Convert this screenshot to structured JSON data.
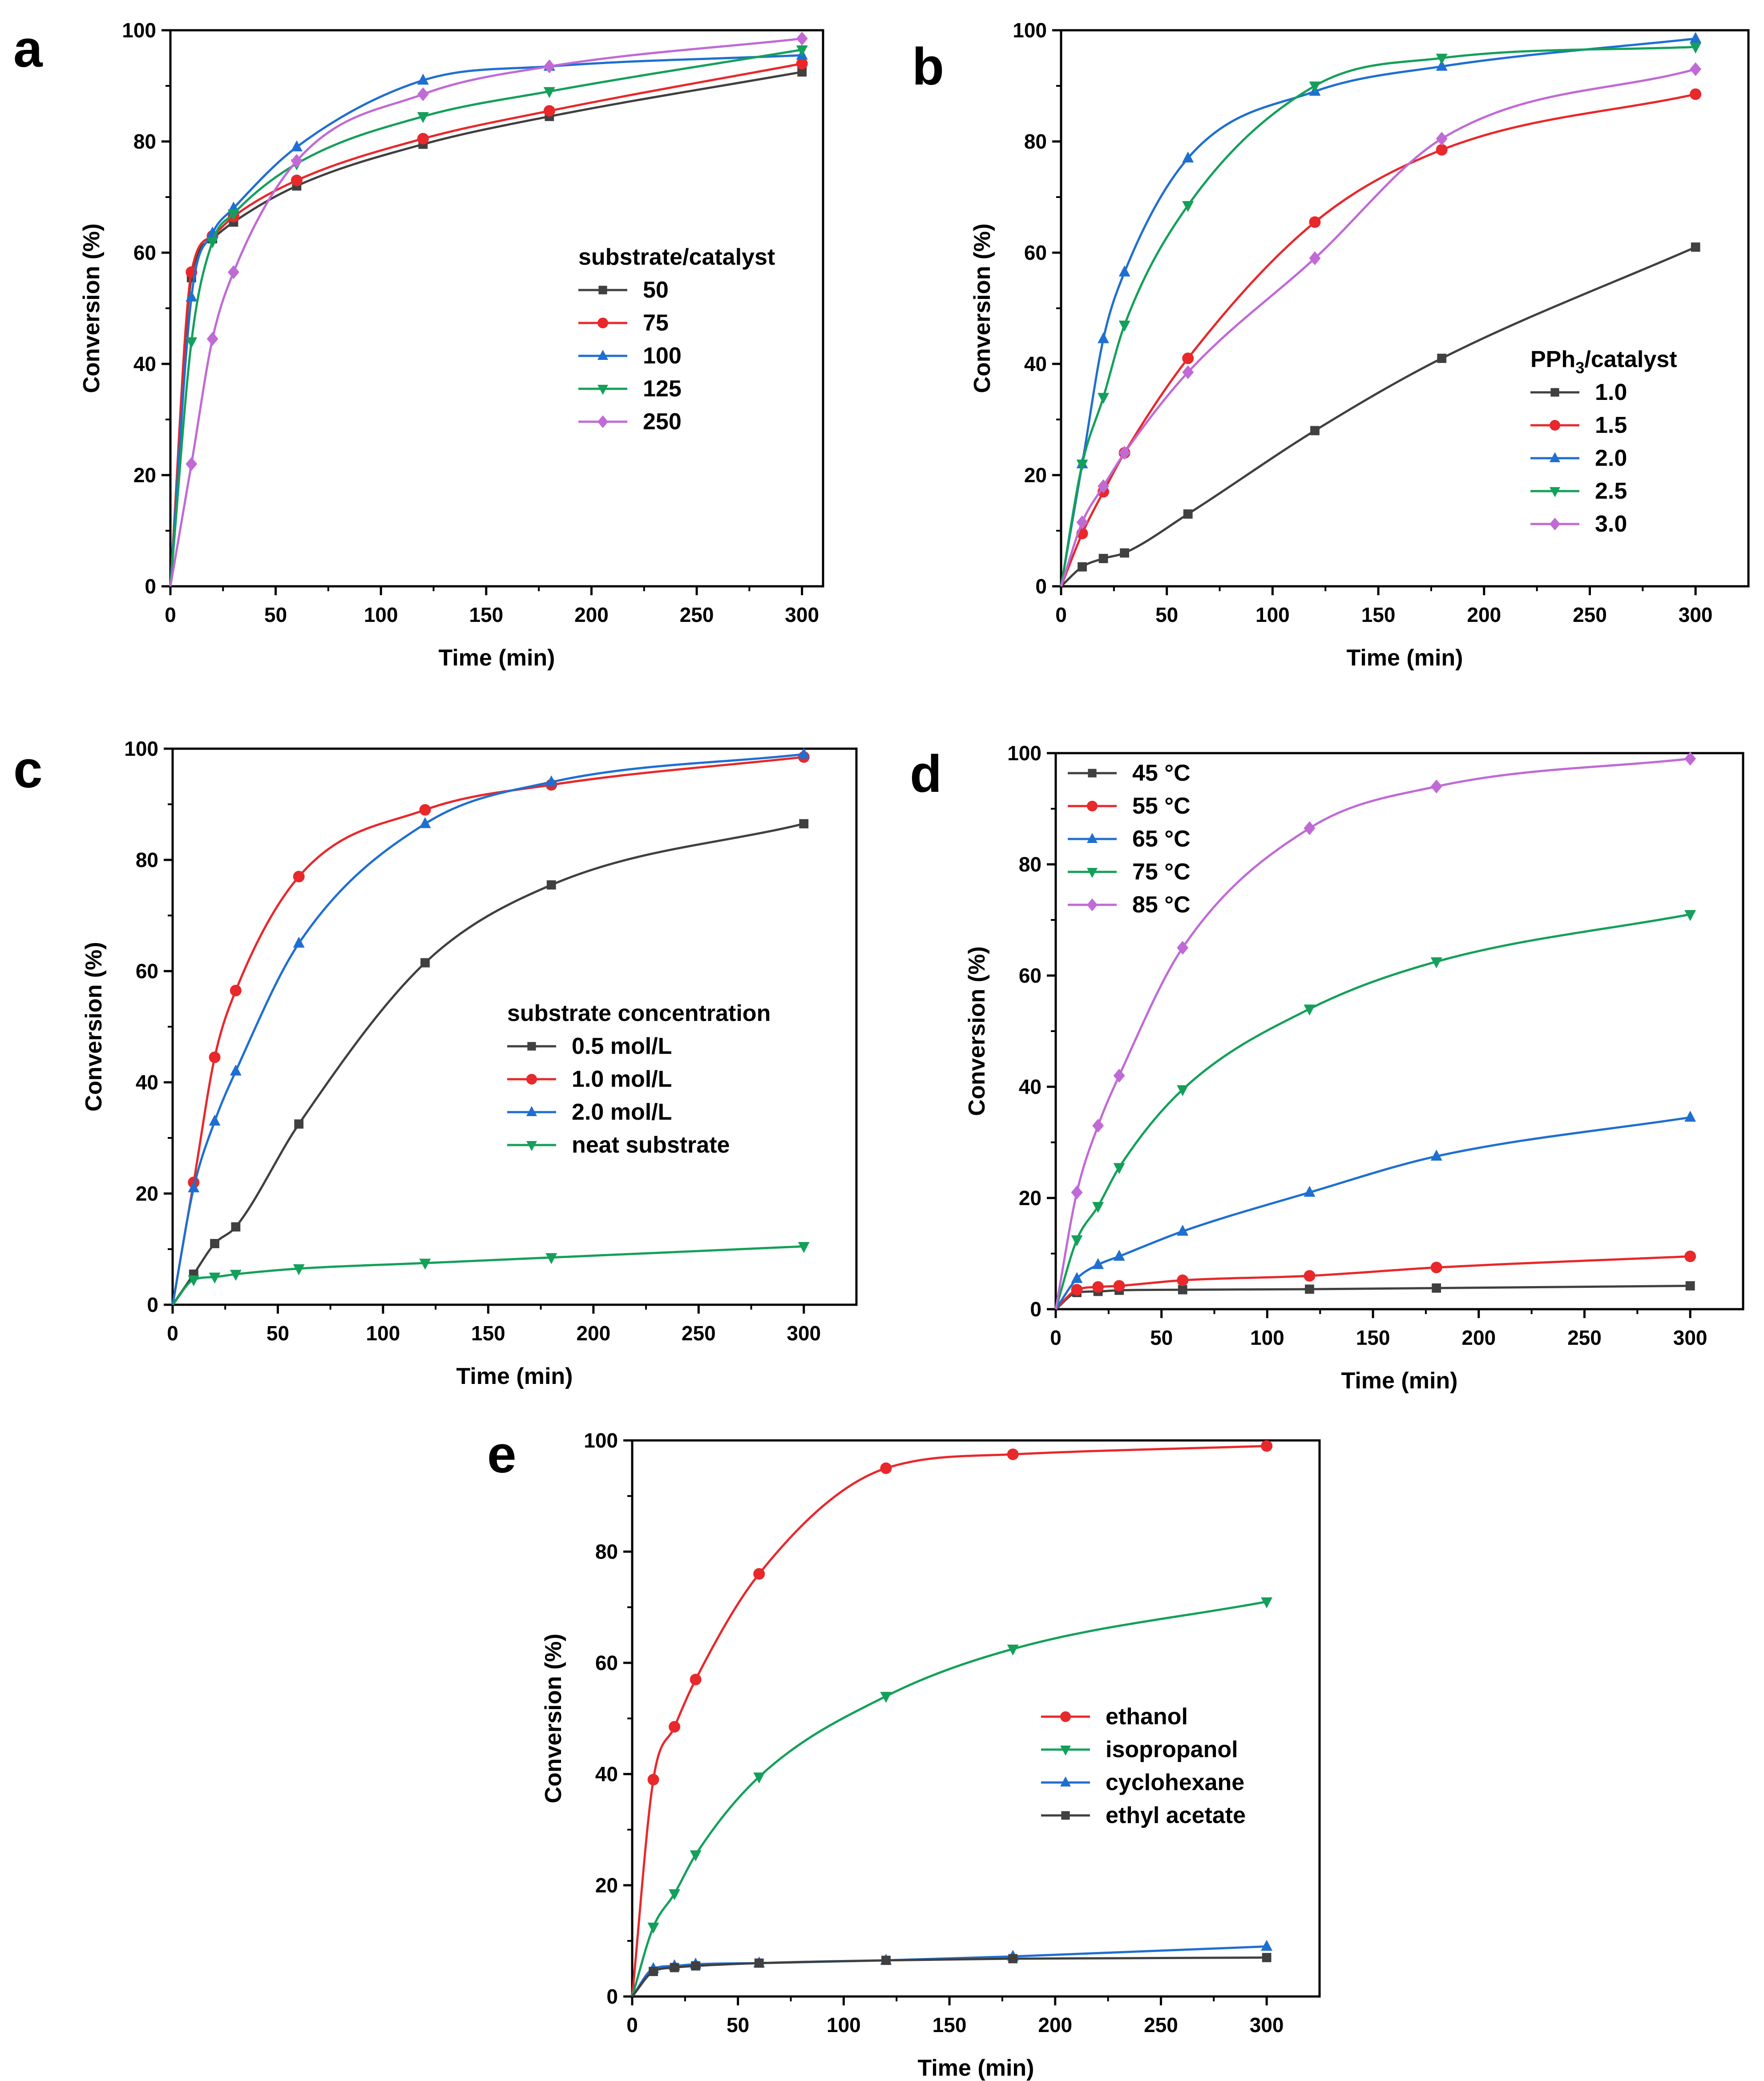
{
  "figure": {
    "panels": [
      "a",
      "b",
      "c",
      "d",
      "e"
    ]
  },
  "chart_data": [
    {
      "panel_label": "a",
      "type": "line",
      "xlabel": "Time (min)",
      "ylabel": "Conversion (%)",
      "xlim": [
        0,
        310
      ],
      "ylim": [
        0,
        100
      ],
      "xticks": [
        0,
        50,
        100,
        150,
        200,
        250,
        300
      ],
      "yticks": [
        0,
        20,
        40,
        60,
        80,
        100
      ],
      "legend_title": "substrate/catalyst",
      "legend_position": "center-right",
      "series": [
        {
          "name": "50",
          "color": "#404040",
          "marker": "square",
          "x": [
            0,
            10,
            20,
            30,
            60,
            120,
            180,
            300
          ],
          "y": [
            0,
            55.5,
            62.5,
            65.5,
            72,
            79.5,
            84.5,
            92.5
          ]
        },
        {
          "name": "75",
          "color": "#e8282b",
          "marker": "circle",
          "x": [
            0,
            10,
            20,
            30,
            60,
            120,
            180,
            300
          ],
          "y": [
            0,
            56.5,
            63,
            66.5,
            73,
            80.5,
            85.5,
            94
          ]
        },
        {
          "name": "100",
          "color": "#1f6fd1",
          "marker": "triangle-up",
          "x": [
            0,
            10,
            20,
            30,
            60,
            120,
            180,
            300
          ],
          "y": [
            0,
            52,
            63.5,
            68,
            79,
            91,
            93.5,
            95.5
          ]
        },
        {
          "name": "125",
          "color": "#14a05a",
          "marker": "triangle-down",
          "x": [
            0,
            10,
            20,
            30,
            60,
            120,
            180,
            300
          ],
          "y": [
            0,
            44,
            62,
            67,
            76,
            84.5,
            89,
            96.5
          ]
        },
        {
          "name": "250",
          "color": "#c06ad6",
          "marker": "diamond",
          "x": [
            0,
            10,
            20,
            30,
            60,
            120,
            180,
            300
          ],
          "y": [
            0,
            22,
            44.5,
            56.5,
            76.5,
            88.5,
            93.5,
            98.5
          ]
        }
      ]
    },
    {
      "panel_label": "b",
      "type": "line",
      "xlabel": "Time (min)",
      "ylabel": "Conversion (%)",
      "xlim": [
        0,
        325
      ],
      "ylim": [
        0,
        100
      ],
      "xticks": [
        0,
        50,
        100,
        150,
        200,
        250,
        300
      ],
      "yticks": [
        0,
        20,
        40,
        60,
        80,
        100
      ],
      "legend_title": "PPh3/catalyst",
      "legend_position": "lower-right",
      "series": [
        {
          "name": "1.0",
          "color": "#404040",
          "marker": "square",
          "x": [
            0,
            10,
            20,
            30,
            60,
            120,
            180,
            300
          ],
          "y": [
            0,
            3.5,
            5,
            6,
            13,
            28,
            41,
            61
          ]
        },
        {
          "name": "1.5",
          "color": "#e8282b",
          "marker": "circle",
          "x": [
            0,
            10,
            20,
            30,
            60,
            120,
            180,
            300
          ],
          "y": [
            0,
            9.5,
            17,
            24,
            41,
            65.5,
            78.5,
            88.5
          ]
        },
        {
          "name": "2.0",
          "color": "#1f6fd1",
          "marker": "triangle-up",
          "x": [
            0,
            10,
            20,
            30,
            60,
            120,
            180,
            300
          ],
          "y": [
            0,
            22,
            44.5,
            56.5,
            77,
            89,
            93.5,
            98.5
          ]
        },
        {
          "name": "2.5",
          "color": "#14a05a",
          "marker": "triangle-down",
          "x": [
            0,
            10,
            20,
            30,
            60,
            120,
            180,
            300
          ],
          "y": [
            0,
            22,
            34,
            47,
            68.5,
            90,
            95,
            97
          ]
        },
        {
          "name": "3.0",
          "color": "#c06ad6",
          "marker": "diamond",
          "x": [
            0,
            10,
            20,
            30,
            60,
            120,
            180,
            300
          ],
          "y": [
            0,
            11.5,
            18,
            24,
            38.5,
            59,
            80.5,
            93
          ]
        }
      ]
    },
    {
      "panel_label": "c",
      "type": "line",
      "xlabel": "Time (min)",
      "ylabel": "Conversion (%)",
      "xlim": [
        0,
        325
      ],
      "ylim": [
        0,
        100
      ],
      "xticks": [
        0,
        50,
        100,
        150,
        200,
        250,
        300
      ],
      "yticks": [
        0,
        20,
        40,
        60,
        80,
        100
      ],
      "legend_title": "substrate concentration",
      "legend_position": "center-right",
      "series": [
        {
          "name": "0.5 mol/L",
          "color": "#404040",
          "marker": "square",
          "x": [
            0,
            10,
            20,
            30,
            60,
            120,
            180,
            300
          ],
          "y": [
            0,
            5.5,
            11,
            14,
            32.5,
            61.5,
            75.5,
            86.5
          ]
        },
        {
          "name": "1.0 mol/L",
          "color": "#e8282b",
          "marker": "circle",
          "x": [
            0,
            10,
            20,
            30,
            60,
            120,
            180,
            300
          ],
          "y": [
            0,
            22,
            44.5,
            56.5,
            77,
            89,
            93.5,
            98.5
          ]
        },
        {
          "name": "2.0 mol/L",
          "color": "#1f6fd1",
          "marker": "triangle-up",
          "x": [
            0,
            10,
            20,
            30,
            60,
            120,
            180,
            300
          ],
          "y": [
            0,
            21,
            33,
            42,
            65,
            86.5,
            94,
            99
          ]
        },
        {
          "name": "neat substrate",
          "color": "#14a05a",
          "marker": "triangle-down",
          "x": [
            0,
            10,
            20,
            30,
            60,
            120,
            180,
            300
          ],
          "y": [
            0,
            4.5,
            5,
            5.5,
            6.5,
            7.5,
            8.5,
            10.5
          ]
        }
      ]
    },
    {
      "panel_label": "d",
      "type": "line",
      "xlabel": "Time (min)",
      "ylabel": "Conversion (%)",
      "xlim": [
        0,
        325
      ],
      "ylim": [
        0,
        100
      ],
      "xticks": [
        0,
        50,
        100,
        150,
        200,
        250,
        300
      ],
      "yticks": [
        0,
        20,
        40,
        60,
        80,
        100
      ],
      "legend_title": "",
      "legend_position": "top-left",
      "series": [
        {
          "name": "45 °C",
          "color": "#404040",
          "marker": "square",
          "x": [
            0,
            10,
            20,
            30,
            60,
            120,
            180,
            300
          ],
          "y": [
            0,
            3,
            3.2,
            3.4,
            3.5,
            3.6,
            3.8,
            4.2
          ]
        },
        {
          "name": "55 °C",
          "color": "#e8282b",
          "marker": "circle",
          "x": [
            0,
            10,
            20,
            30,
            60,
            120,
            180,
            300
          ],
          "y": [
            0,
            3.5,
            4,
            4.2,
            5.2,
            6,
            7.5,
            9.5
          ]
        },
        {
          "name": "65 °C",
          "color": "#1f6fd1",
          "marker": "triangle-up",
          "x": [
            0,
            10,
            20,
            30,
            60,
            120,
            180,
            300
          ],
          "y": [
            0,
            5.5,
            8,
            9.5,
            14,
            21,
            27.5,
            34.5
          ]
        },
        {
          "name": "75 °C",
          "color": "#14a05a",
          "marker": "triangle-down",
          "x": [
            0,
            10,
            20,
            30,
            60,
            120,
            180,
            300
          ],
          "y": [
            0,
            12.5,
            18.5,
            25.5,
            39.5,
            54,
            62.5,
            71
          ]
        },
        {
          "name": "85 °C",
          "color": "#c06ad6",
          "marker": "diamond",
          "x": [
            0,
            10,
            20,
            30,
            60,
            120,
            180,
            300
          ],
          "y": [
            0,
            21,
            33,
            42,
            65,
            86.5,
            94,
            99
          ]
        }
      ]
    },
    {
      "panel_label": "e",
      "type": "line",
      "xlabel": "Time (min)",
      "ylabel": "Conversion (%)",
      "xlim": [
        0,
        325
      ],
      "ylim": [
        0,
        100
      ],
      "xticks": [
        0,
        50,
        100,
        150,
        200,
        250,
        300
      ],
      "yticks": [
        0,
        20,
        40,
        60,
        80,
        100
      ],
      "legend_title": "",
      "legend_position": "center-right",
      "series": [
        {
          "name": "ethanol",
          "color": "#e8282b",
          "marker": "circle",
          "x": [
            0,
            10,
            20,
            30,
            60,
            120,
            180,
            300
          ],
          "y": [
            0,
            39,
            48.5,
            57,
            76,
            95,
            97.5,
            99
          ]
        },
        {
          "name": "isopropanol",
          "color": "#14a05a",
          "marker": "triangle-down",
          "x": [
            0,
            10,
            20,
            30,
            60,
            120,
            180,
            300
          ],
          "y": [
            0,
            12.5,
            18.5,
            25.5,
            39.5,
            54,
            62.5,
            71
          ]
        },
        {
          "name": "cyclohexane",
          "color": "#1f6fd1",
          "marker": "triangle-up",
          "x": [
            0,
            10,
            20,
            30,
            60,
            120,
            180,
            300
          ],
          "y": [
            0,
            5,
            5.5,
            5.8,
            6,
            6.5,
            7.2,
            9
          ]
        },
        {
          "name": "ethyl acetate",
          "color": "#404040",
          "marker": "square",
          "x": [
            0,
            10,
            20,
            30,
            60,
            120,
            180,
            300
          ],
          "y": [
            0,
            4.5,
            5.2,
            5.5,
            6,
            6.5,
            6.8,
            7
          ]
        }
      ]
    }
  ]
}
